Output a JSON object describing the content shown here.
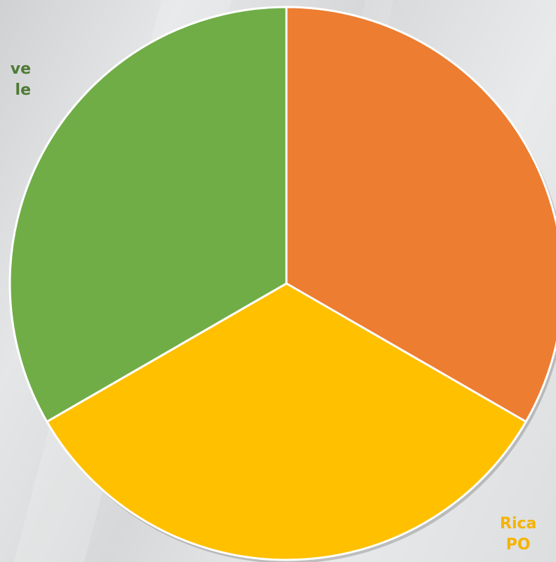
{
  "chart_data": {
    "type": "pie",
    "slices": [
      {
        "value": 33.33,
        "color": "#ED7D31"
      },
      {
        "value": 33.33,
        "color": "#FFC000"
      },
      {
        "value": 33.33,
        "color": "#70AD47"
      }
    ],
    "start_angle_deg": 0,
    "direction": "clockwise",
    "slice_border_color": "#FFFFFF",
    "labels": {
      "green_partial": "ve\nle",
      "orange_partial": "Rica\nPO"
    }
  },
  "colors": {
    "green_label": "#4E7A34",
    "orange_label": "#F5B301"
  }
}
